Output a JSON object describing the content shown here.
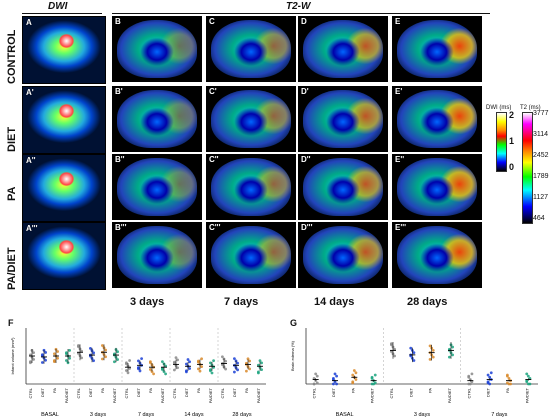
{
  "headers": {
    "dwi": "DWI",
    "t2w": "T2-W"
  },
  "rows": [
    {
      "label": "CONTROL",
      "panels": [
        "A",
        "B",
        "C",
        "D",
        "E"
      ]
    },
    {
      "label": "DIET",
      "panels": [
        "A'",
        "B'",
        "C'",
        "D'",
        "E'"
      ]
    },
    {
      "label": "PA",
      "panels": [
        "A''",
        "B''",
        "C''",
        "D''",
        "E''"
      ]
    },
    {
      "label": "PA/DIET",
      "panels": [
        "A'''",
        "B'''",
        "C'''",
        "D'''",
        "E'''"
      ]
    }
  ],
  "days": [
    "3 days",
    "7 days",
    "14 days",
    "28 days"
  ],
  "dwi_scale": {
    "title": "DWI (ms)",
    "ticks": [
      "2",
      "1",
      "0"
    ]
  },
  "t2_scale": {
    "title": "T2 (ms)",
    "ticks": [
      "3777",
      "3114",
      "2452",
      "1789",
      "1127",
      "464"
    ]
  },
  "chart_data": [
    {
      "panel": "F",
      "type": "scatter",
      "ylabel": "Infarct volume (mm³)",
      "groups": [
        "BASAL",
        "3 days",
        "7 days",
        "14 days",
        "28 days"
      ],
      "categories": [
        "CTRL",
        "DIET",
        "PA",
        "PA/DIET"
      ],
      "means": [
        [
          30,
          29,
          30,
          30
        ],
        [
          34,
          31,
          34,
          31
        ],
        [
          18,
          20,
          18,
          18
        ],
        [
          21,
          19,
          21,
          19
        ],
        [
          22,
          20,
          21,
          19
        ]
      ]
    },
    {
      "panel": "G",
      "type": "scatter",
      "ylabel": "Brain edema (%)",
      "groups": [
        "BASAL",
        "3 days",
        "7 days"
      ],
      "categories": [
        "CTRL",
        "DIET",
        "PA",
        "PA/DIET"
      ],
      "means": [
        [
          2,
          1.5,
          3,
          1.5
        ],
        [
          15,
          13,
          14,
          15
        ],
        [
          1.5,
          2,
          1.5,
          2
        ]
      ]
    }
  ]
}
